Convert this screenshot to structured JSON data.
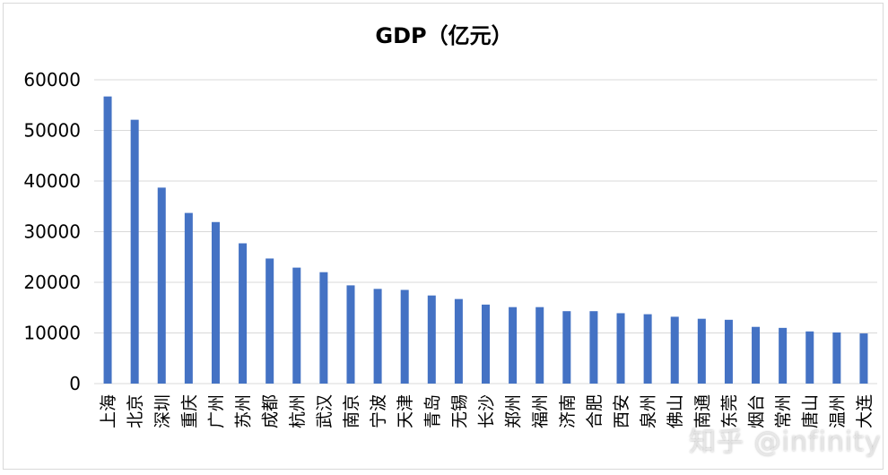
{
  "watermark": "知乎 @infinity",
  "chart_data": {
    "type": "bar",
    "title": "GDP（亿元）",
    "xlabel": "",
    "ylabel": "",
    "ylim": [
      0,
      60000
    ],
    "yticks": [
      0,
      10000,
      20000,
      30000,
      40000,
      50000,
      60000
    ],
    "grid": true,
    "legend": "none",
    "bar_color": "#4472c4",
    "grid_color": "#d9d9d9",
    "categories": [
      "上海",
      "北京",
      "深圳",
      "重庆",
      "广州",
      "苏州",
      "成都",
      "杭州",
      "武汉",
      "南京",
      "宁波",
      "天津",
      "青岛",
      "无锡",
      "长沙",
      "郑州",
      "福州",
      "济南",
      "合肥",
      "西安",
      "泉州",
      "佛山",
      "南通",
      "东莞",
      "烟台",
      "常州",
      "唐山",
      "温州",
      "大连"
    ],
    "values": [
      56700,
      52100,
      38700,
      33700,
      31900,
      27700,
      24700,
      22900,
      22000,
      19400,
      18700,
      18500,
      17400,
      16700,
      15600,
      15100,
      15100,
      14300,
      14300,
      13900,
      13700,
      13200,
      12800,
      12600,
      11200,
      11000,
      10300,
      10100,
      9900
    ]
  }
}
